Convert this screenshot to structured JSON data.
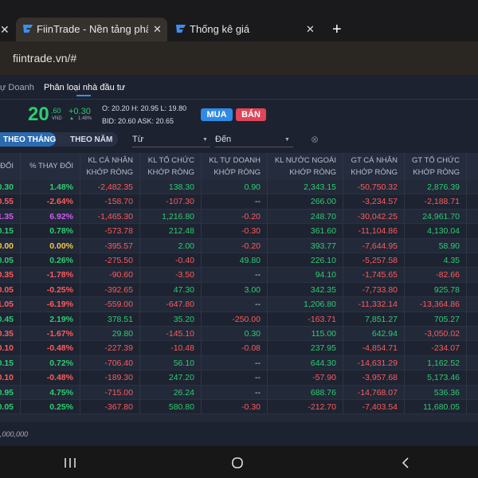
{
  "browser": {
    "tabs": [
      "FiinTrade - Nền tảng phân tíc",
      "Thống kê giá"
    ],
    "url": "fiintrade.vn/#"
  },
  "nav": [
    "ự Doanh",
    "Phân loại nhà đầu tư"
  ],
  "quote": {
    "price": "20",
    "price_decimal": ".60",
    "unit": "VND",
    "change": "+0.30",
    "change_percent": "1.48%",
    "ohl": "O: 20.20 H: 20.95 L: 19.80",
    "bid_ask": "BID: 20.60 ASK: 20.65"
  },
  "buttons": [
    "MUA",
    "BÁN"
  ],
  "period_tabs": [
    "THEO THÁNG",
    "THEO NĂM"
  ],
  "date_filters": [
    "Từ",
    "Đến"
  ],
  "table": {
    "headers": [
      [
        "ĐỔI"
      ],
      [
        "% THAY ĐỔI"
      ],
      [
        "KL CÁ NHÂN",
        "KHỚP RÒNG"
      ],
      [
        "KL TỔ CHỨC",
        "KHỚP RÒNG"
      ],
      [
        "KL TỰ DOANH",
        "KHỚP RÒNG"
      ],
      [
        "KL NƯỚC NGOÀI",
        "KHỚP RÒNG"
      ],
      [
        "GT CÁ NHÂN",
        "KHỚP RÒNG"
      ],
      [
        "GT TỔ CHỨC",
        "KHỚP RÒNG"
      ]
    ],
    "rows": [
      [
        "0.30",
        "1.48%",
        "-2,482.35",
        "138.30",
        "0.90",
        "2,343.15",
        "-50,750.32",
        "2,876.39"
      ],
      [
        "0.55",
        "-2.64%",
        "-158.70",
        "-107.30",
        "--",
        "266.00",
        "-3,234.57",
        "-2,188.71"
      ],
      [
        "1.35",
        "6.92%",
        "-1,465.30",
        "1,216.80",
        "-0.20",
        "248.70",
        "-30,042.25",
        "24,961.70"
      ],
      [
        "0.15",
        "0.78%",
        "-573.78",
        "212.48",
        "-0.30",
        "361.60",
        "-11,104.86",
        "4,130.04"
      ],
      [
        "0.00",
        "0.00%",
        "-395.57",
        "2.00",
        "-0.20",
        "393.77",
        "-7,644.95",
        "58.90"
      ],
      [
        "0.05",
        "0.26%",
        "-275.50",
        "-0.40",
        "49.80",
        "226.10",
        "-5,257.58",
        "4.35"
      ],
      [
        "0.35",
        "-1.78%",
        "-90.60",
        "-3.50",
        "--",
        "94.10",
        "-1,745.65",
        "-82.66"
      ],
      [
        "0.05",
        "-0.25%",
        "-392.65",
        "47.30",
        "3.00",
        "342.35",
        "-7,733.80",
        "925.78"
      ],
      [
        "1.05",
        "-6.19%",
        "-559.00",
        "-647.80",
        "--",
        "1,206.80",
        "-11,332.14",
        "-13,364.86"
      ],
      [
        "0.45",
        "2.19%",
        "378.51",
        "35.20",
        "-250.00",
        "-163.71",
        "7,851.27",
        "705.27"
      ],
      [
        "0.35",
        "-1.67%",
        "29.80",
        "-145.10",
        "0.30",
        "115.00",
        "642.94",
        "-3,050.02"
      ],
      [
        "0.10",
        "-0.48%",
        "-227.39",
        "-10.48",
        "-0.08",
        "237.95",
        "-4,854.71",
        "-234.07"
      ],
      [
        "0.15",
        "0.72%",
        "-706.40",
        "56.10",
        "--",
        "644.30",
        "-14,631.29",
        "1,162.52"
      ],
      [
        "0.10",
        "-0.48%",
        "-189.30",
        "247.20",
        "--",
        "-57.90",
        "-3,957.68",
        "5,173.46"
      ],
      [
        "0.95",
        "4.75%",
        "-715.00",
        "26.24",
        "--",
        "688.76",
        "-14,768.07",
        "536.36"
      ],
      [
        "0.05",
        "0.25%",
        "-367.80",
        "580.80",
        "-0.30",
        "-212.70",
        "-7,403.54",
        "11,680.05"
      ]
    ],
    "row_colors": [
      "#2ecc71",
      "#ff5b5b",
      "#d05cf0",
      "#2ecc71",
      "#f2c94c",
      "#2ecc71",
      "#ff5b5b",
      "#ff5b5b",
      "#ff5b5b",
      "#2ecc71",
      "#ff5b5b",
      "#ff5b5b",
      "#2ecc71",
      "#ff5b5b",
      "#2ecc71",
      "#2ecc71"
    ]
  },
  "footer_note": ",000,000"
}
